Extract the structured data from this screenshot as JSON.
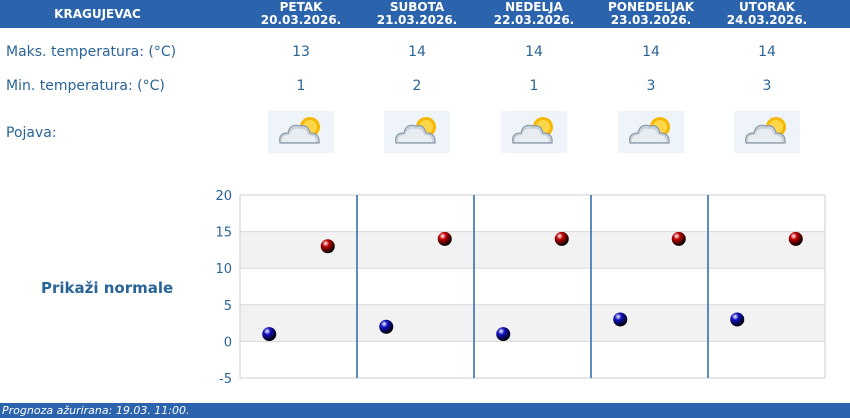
{
  "header": {
    "city": "KRAGUJEVAC"
  },
  "days": [
    {
      "name": "PETAK",
      "date": "20.03.2026.",
      "max": "13",
      "min": "1",
      "icon": "partly-cloudy-sun-icon"
    },
    {
      "name": "SUBOTA",
      "date": "21.03.2026.",
      "max": "14",
      "min": "2",
      "icon": "partly-cloudy-sun-icon"
    },
    {
      "name": "NEDELJA",
      "date": "22.03.2026.",
      "max": "14",
      "min": "1",
      "icon": "partly-cloudy-sun-icon"
    },
    {
      "name": "PONEDELJAK",
      "date": "23.03.2026.",
      "max": "14",
      "min": "3",
      "icon": "partly-cloudy-sun-icon"
    },
    {
      "name": "UTORAK",
      "date": "24.03.2026.",
      "max": "14",
      "min": "3",
      "icon": "partly-cloudy-sun-icon"
    }
  ],
  "rows": {
    "max_label": "Maks. temperatura: (°C)",
    "min_label": "Min. temperatura: (°C)",
    "phen_label": "Pojava:"
  },
  "normals_label": "Prikaži normale",
  "footer": {
    "updated": "Prognoza ažurirana:  19.03. 11:00."
  },
  "colors": {
    "header": "#2b64ad",
    "text": "#2a6497",
    "max_marker": "#c00000",
    "min_marker": "#1010c0"
  },
  "chart_data": {
    "type": "scatter",
    "categories": [
      "20.03.2026.",
      "21.03.2026.",
      "22.03.2026.",
      "23.03.2026.",
      "24.03.2026."
    ],
    "series": [
      {
        "values": [
          13,
          14,
          14,
          14,
          14
        ],
        "color": "#c00000"
      },
      {
        "values": [
          1,
          2,
          1,
          3,
          3
        ],
        "color": "#1010c0"
      }
    ],
    "ylim": [
      -5,
      20
    ],
    "yticks": [
      20,
      15,
      10,
      5,
      0,
      -5
    ],
    "grid": true
  }
}
